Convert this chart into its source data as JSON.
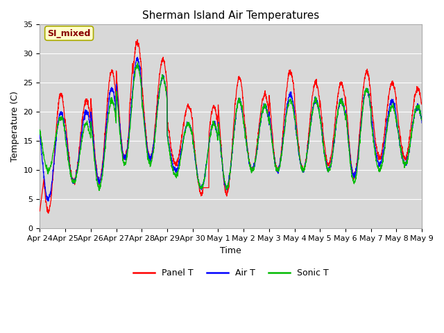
{
  "title": "Sherman Island Air Temperatures",
  "xlabel": "Time",
  "ylabel": "Temperature (C)",
  "ylim": [
    0,
    35
  ],
  "yticks": [
    0,
    5,
    10,
    15,
    20,
    25,
    30,
    35
  ],
  "x_tick_labels": [
    "Apr 24",
    "Apr 25",
    "Apr 26",
    "Apr 27",
    "Apr 28",
    "Apr 29",
    "Apr 30",
    "May 1",
    "May 2",
    "May 3",
    "May 4",
    "May 5",
    "May 6",
    "May 7",
    "May 8",
    "May 9"
  ],
  "legend_entries": [
    "Panel T",
    "Air T",
    "Sonic T"
  ],
  "legend_colors": [
    "#ff0000",
    "#0000ff",
    "#00bb00"
  ],
  "annotation_text": "SI_mixed",
  "annotation_color": "#880000",
  "annotation_bg": "#ffffcc",
  "panel_color": "#ff0000",
  "air_color": "#0000ff",
  "sonic_color": "#00bb00",
  "plot_bg_color": "#d8d8d8",
  "fig_bg_color": "#ffffff",
  "grid_color": "#ffffff",
  "title_fontsize": 11,
  "axis_label_fontsize": 9,
  "tick_fontsize": 8
}
